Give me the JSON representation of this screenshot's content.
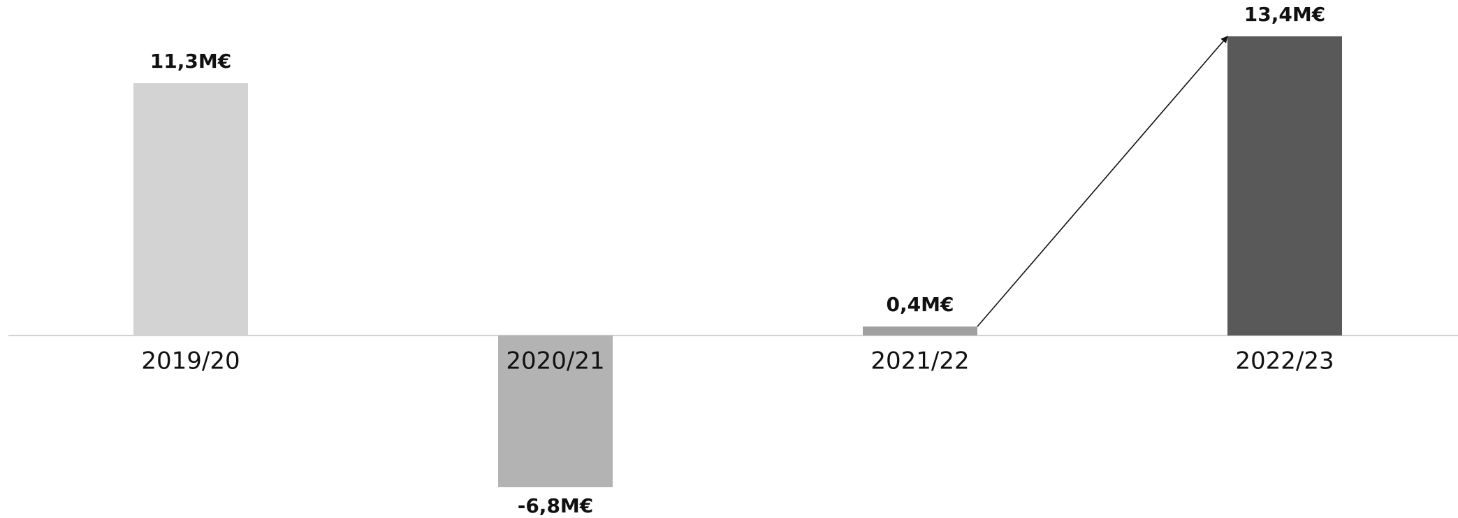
{
  "chart_data": {
    "type": "bar",
    "categories": [
      "2019/20",
      "2020/21",
      "2021/22",
      "2022/23"
    ],
    "values": [
      11.3,
      -6.8,
      0.4,
      13.4
    ],
    "value_labels": [
      "11,3M€",
      "-6,8M€",
      "0,4M€",
      "13,4M€"
    ],
    "colors": [
      "#d3d3d3",
      "#b3b3b3",
      "#a0a0a0",
      "#595959"
    ]
  }
}
